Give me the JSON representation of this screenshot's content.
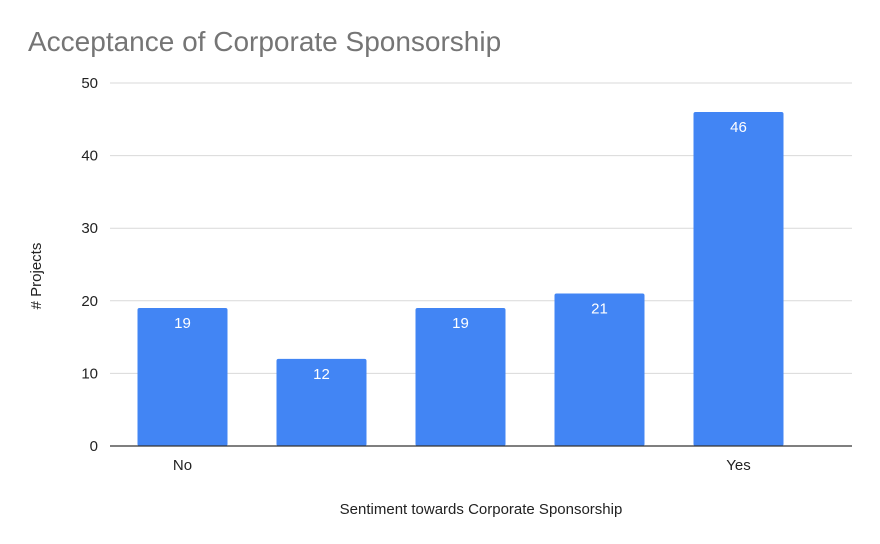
{
  "chart_data": {
    "type": "bar",
    "title": "Acceptance of Corporate Sponsorship",
    "xlabel": "Sentiment towards Corporate Sponsorship",
    "ylabel": "# Projects",
    "categories": [
      "No",
      "",
      "",
      "",
      "Yes"
    ],
    "values": [
      19,
      12,
      19,
      21,
      46
    ],
    "ylim": [
      0,
      50
    ],
    "yticks": [
      0,
      10,
      20,
      30,
      40,
      50
    ],
    "grid": true,
    "bar_color": "#4285F4",
    "data_label_color": "#FFFFFF",
    "title_color": "#757575",
    "gridline_color": "#D9D9D9"
  }
}
